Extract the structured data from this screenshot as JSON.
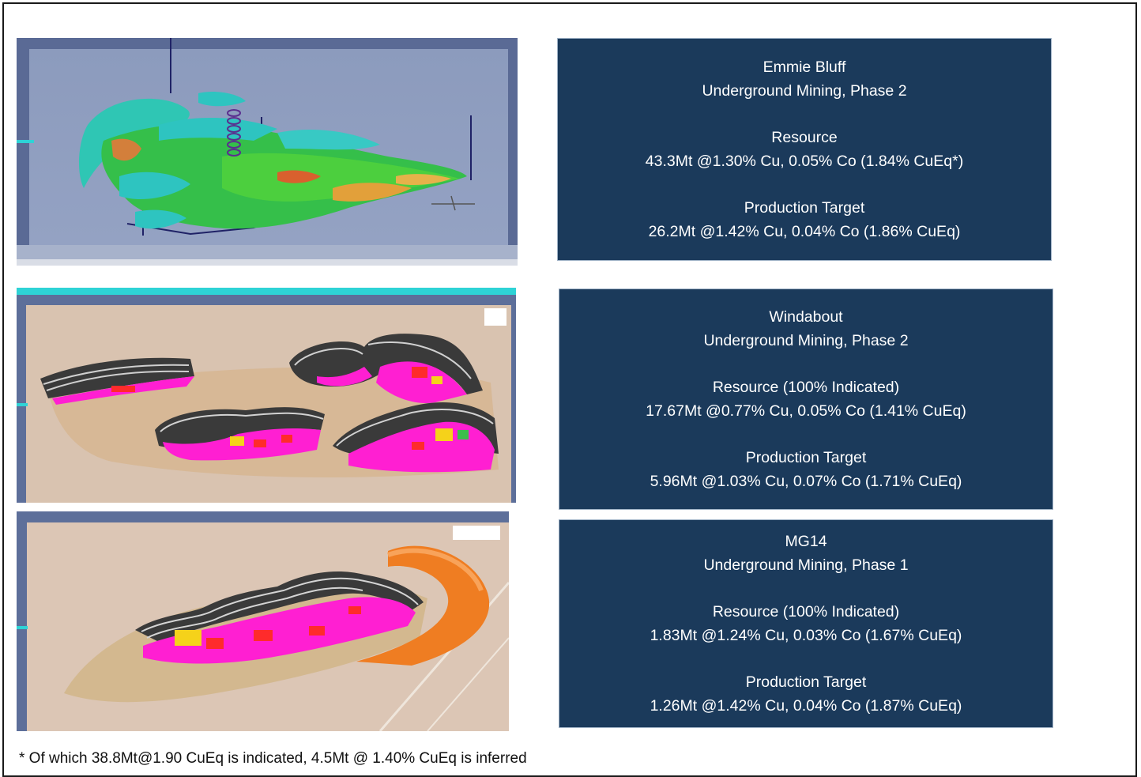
{
  "projects": [
    {
      "name": "Emmie Bluff",
      "method": "Underground Mining, Phase 2",
      "resource_heading": "Resource",
      "resource_value": "43.3Mt @1.30% Cu, 0.05% Co (1.84% CuEq*)",
      "target_heading": "Production Target",
      "target_value": "26.2Mt @1.42% Cu, 0.04% Co (1.86% CuEq)",
      "image_type": "underground-mine-model"
    },
    {
      "name": "Windabout",
      "method": "Underground Mining, Phase 2",
      "resource_heading": "Resource (100% Indicated)",
      "resource_value": "17.67Mt @0.77% Cu, 0.05% Co (1.41% CuEq)",
      "target_heading": "Production Target",
      "target_value": "5.96Mt @1.03% Cu, 0.07% Co (1.71% CuEq)",
      "image_type": "open-pit-model"
    },
    {
      "name": "MG14",
      "method": "Underground Mining, Phase 1",
      "resource_heading": "Resource (100% Indicated)",
      "resource_value": "1.83Mt @1.24% Cu, 0.03% Co (1.67% CuEq)",
      "target_heading": "Production Target",
      "target_value": "1.26Mt @1.42% Cu, 0.04% Co (1.87% CuEq)",
      "image_type": "open-pit-model"
    }
  ],
  "footnote": "* Of which 38.8Mt@1.90 CuEq is indicated, 4.5Mt @ 1.40% CuEq is inferred",
  "colors": {
    "box_background": "#1b3a5b",
    "box_text": "#ffffff",
    "orebody_magenta": "#ff1fd2",
    "model_green": "#3bbf4a",
    "model_cyan": "#2ec4c0",
    "orange_stockpile": "#ef7d22"
  }
}
